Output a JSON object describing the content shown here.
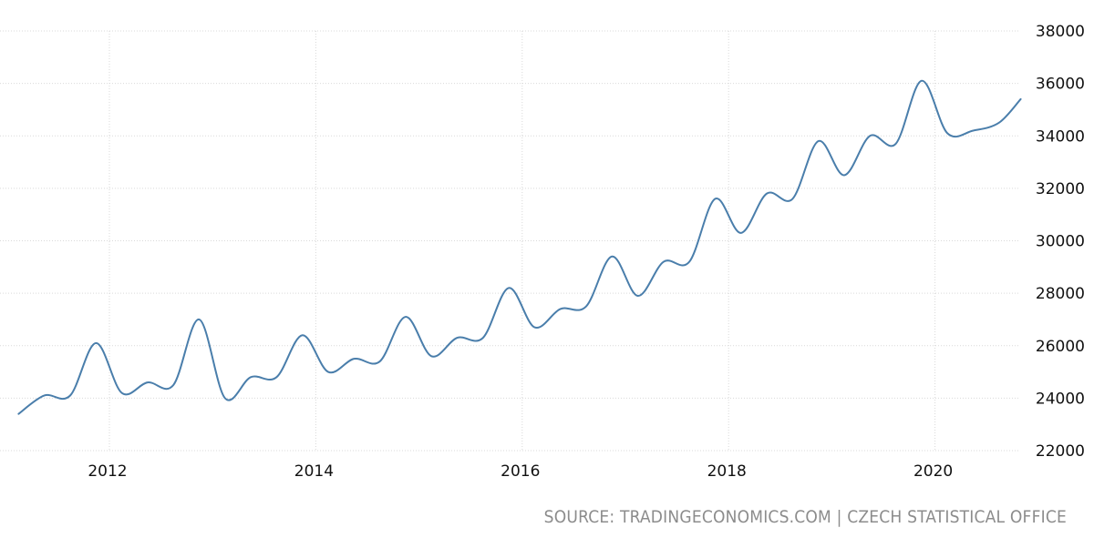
{
  "chart_data": {
    "type": "line",
    "title": "",
    "xlabel": "",
    "ylabel": "",
    "xlim": [
      2011.12,
      2020.83
    ],
    "ylim": [
      22000,
      38000
    ],
    "x_ticks": [
      2012,
      2014,
      2016,
      2018,
      2020
    ],
    "x_tick_labels": [
      "2012",
      "2014",
      "2016",
      "2018",
      "2020"
    ],
    "y_ticks": [
      22000,
      24000,
      26000,
      28000,
      30000,
      32000,
      34000,
      36000,
      38000
    ],
    "y_tick_labels": [
      "22000",
      "24000",
      "26000",
      "28000",
      "30000",
      "32000",
      "34000",
      "36000",
      "38000"
    ],
    "grid": true,
    "line_color": "#4a7eab",
    "series": [
      {
        "x": [
          2011.12,
          2011.37,
          2011.62,
          2011.87,
          2012.12,
          2012.37,
          2012.62,
          2012.87,
          2013.12,
          2013.37,
          2013.62,
          2013.87,
          2014.12,
          2014.37,
          2014.62,
          2014.87,
          2015.12,
          2015.37,
          2015.62,
          2015.87,
          2016.12,
          2016.37,
          2016.62,
          2016.87,
          2017.12,
          2017.37,
          2017.62,
          2017.87,
          2018.12,
          2018.37,
          2018.62,
          2018.87,
          2019.12,
          2019.37,
          2019.62,
          2019.87,
          2020.12,
          2020.37,
          2020.62,
          2020.83
        ],
        "values": [
          23400,
          24100,
          24100,
          26100,
          24200,
          24600,
          24500,
          27000,
          24000,
          24800,
          24800,
          26400,
          25000,
          25500,
          25400,
          27100,
          25600,
          26300,
          26300,
          28200,
          26700,
          27400,
          27500,
          29400,
          27900,
          29200,
          29200,
          31600,
          30300,
          31800,
          31600,
          33800,
          32500,
          34000,
          33700,
          36100,
          34100,
          34200,
          34500,
          35400
        ]
      }
    ]
  },
  "source": "SOURCE: TRADINGECONOMICS.COM | CZECH STATISTICAL OFFICE"
}
